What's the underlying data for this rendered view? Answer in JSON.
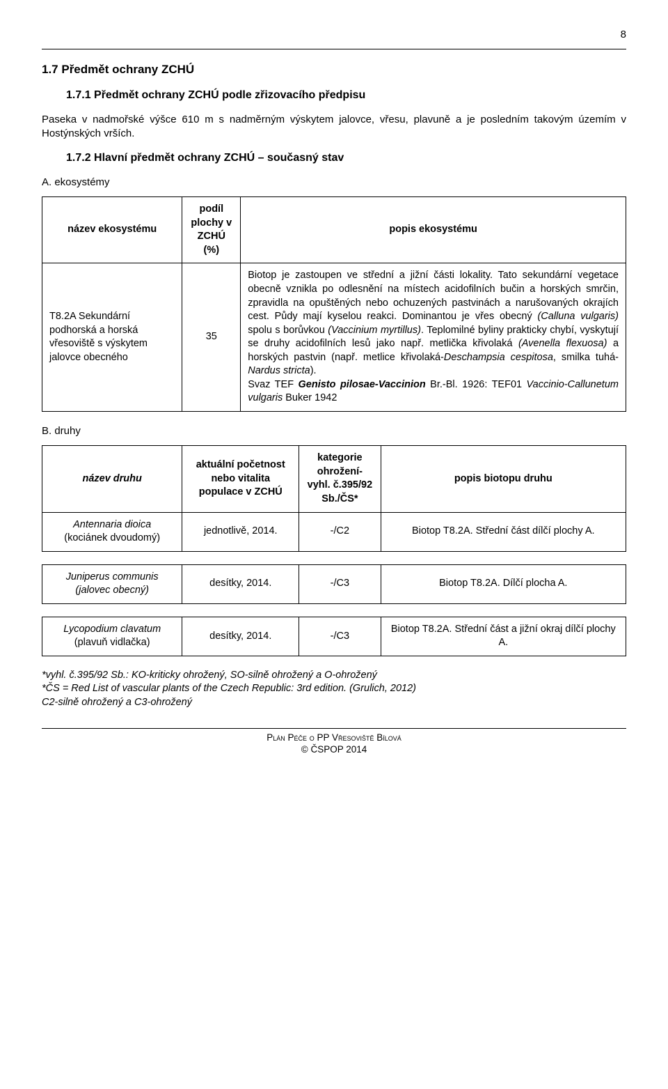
{
  "page_number": "8",
  "headings": {
    "section": "1.7  Předmět ochrany ZCHÚ",
    "sub1": "1.7.1 Předmět ochrany ZCHÚ podle zřizovacího předpisu",
    "sub2": "1.7.2 Hlavní předmět ochrany ZCHÚ – současný stav",
    "sub_a": "A. ekosystémy",
    "sub_b": "B. druhy"
  },
  "intro_para": "Paseka v nadmořské výšce 610 m s nadměrným výskytem jalovce, vřesu, plavuně a je posledním takovým územím v Hostýnských vrších.",
  "eco_table": {
    "head": {
      "c1": "název ekosystému",
      "c2": "podíl plochy v ZCHÚ (%)",
      "c3": "popis ekosystému"
    },
    "row": {
      "name": "T8.2A Sekundární podhorská a horská vřesoviště s výskytem jalovce obecného",
      "share": "35",
      "desc_plain1": "Biotop je zastoupen ve střední a jižní části lokality. Tato sekundární vegetace obecně vznikla po odlesnění na místech acidofilních bučin a horských smrčin, zpravidla na opuštěných nebo ochuzených pastvinách a narušovaných okrajích cest. Půdy mají kyselou reakci. ",
      "desc_ital1": "(Calluna vulgaris)",
      "desc_plain1b": "Dominantou je vřes obecný ",
      "desc_plain2": " spolu s borůvkou ",
      "desc_ital2": "(Vaccinium myrtillus)",
      "desc_plain3": ". Teplomilné byliny prakticky chybí, vyskytují se druhy acidofilních lesů jako např. metlička křivolaká ",
      "desc_ital3": "(Avenella flexuosa)",
      "desc_plain4": " a horských pastvin (např. metlice křivolaká-",
      "desc_ital4": "Deschampsia cespitosa",
      "desc_plain5": ", smilka tuhá-",
      "desc_ital5": "Nardus stricta",
      "desc_plain6": ").",
      "desc_bold": "Genisto pilosae-Vaccinion",
      "desc_plain7": "Svaz TEF ",
      "desc_plain8": " Br.-Bl. 1926: TEF01 ",
      "desc_ital6": "Vaccinio-Callunetum vulgaris",
      "desc_plain9": " Buker 1942"
    }
  },
  "species_table": {
    "head": {
      "c1": "název druhu",
      "c2": "aktuální početnost nebo vitalita populace v ZCHÚ",
      "c3": "kategorie ohrožení-vyhl. č.395/92 Sb./ČS*",
      "c4": "popis biotopu druhu"
    },
    "rows": [
      {
        "name_it": "Antennaria dioica",
        "name_cz": "(kociánek dvoudomý)",
        "pop": "jednotlivě, 2014.",
        "cat": "-/C2",
        "desc": "Biotop T8.2A. Střední část dílčí plochy A."
      },
      {
        "name_it": "Juniperus communis",
        "name_cz": "(jalovec obecný)",
        "pop": "desítky, 2014.",
        "cat": "-/C3",
        "desc": "Biotop T8.2A. Dílčí plocha A."
      },
      {
        "name_it": "Lycopodium clavatum",
        "name_cz": "(plavuň vidlačka)",
        "pop": "desítky, 2014.",
        "cat": "-/C3",
        "desc": "Biotop T8.2A. Střední část a jižní okraj dílčí plochy A."
      }
    ]
  },
  "notes": {
    "line1_a": "*vyhl. č.395/92 Sb.: KO-kriticky ohrožený, SO-silně ohrožený a O-ohrožený",
    "line2_a": "*ČS = Red List of vascular plants of the Czech Republic: 3rd edition. (Grulich, 2012)",
    "line3_a": "C2-silně ohrožený a C3-ohrožený"
  },
  "footer": {
    "l1": "Plán Péče o PP Vřesoviště Bílová",
    "l2": "© ČSPOP 2014"
  }
}
